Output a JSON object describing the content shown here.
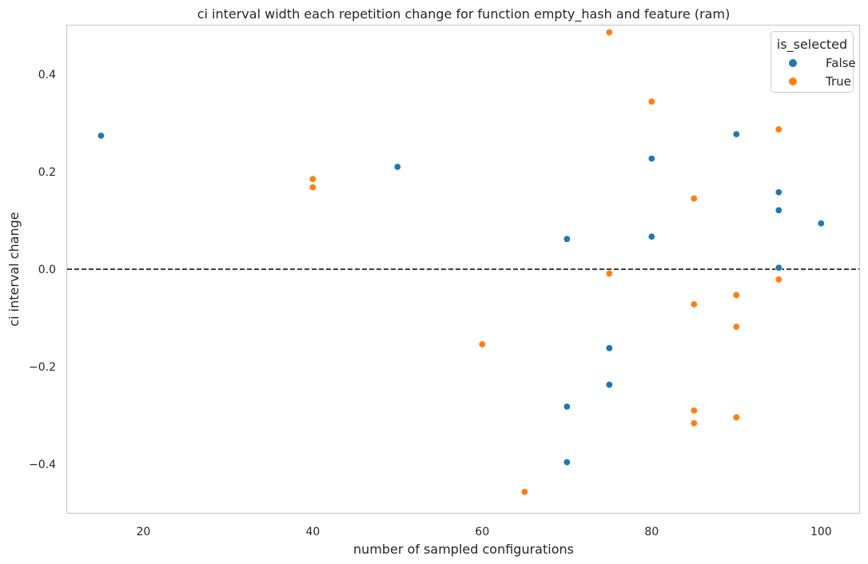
{
  "chart_data": {
    "type": "scatter",
    "title": "ci interval width each repetition change for function empty_hash and feature (ram)",
    "xlabel": "number of sampled configurations",
    "ylabel": "ci interval change",
    "xlim": [
      11,
      104.5
    ],
    "ylim": [
      -0.5,
      0.5
    ],
    "xticks": [
      20,
      40,
      60,
      80,
      100
    ],
    "xtick_labels": [
      "20",
      "40",
      "60",
      "80",
      "100"
    ],
    "yticks": [
      -0.4,
      -0.2,
      0.0,
      0.2,
      0.4
    ],
    "ytick_labels": [
      "−0.4",
      "−0.2",
      "0.0",
      "0.2",
      "0.4"
    ],
    "grid": false,
    "reference_line": {
      "y": 0.0,
      "style": "dashed",
      "color": "#000000"
    },
    "legend": {
      "title": "is_selected",
      "placement": "top-right"
    },
    "series": [
      {
        "name": "False",
        "color": "#1f77b4",
        "points": [
          [
            15,
            0.274
          ],
          [
            50,
            0.21
          ],
          [
            70,
            0.062
          ],
          [
            70,
            -0.282
          ],
          [
            70,
            -0.396
          ],
          [
            75,
            -0.162
          ],
          [
            75,
            -0.237
          ],
          [
            80,
            0.227
          ],
          [
            80,
            0.067
          ],
          [
            90,
            0.277
          ],
          [
            95,
            0.158
          ],
          [
            95,
            0.121
          ],
          [
            95,
            0.003
          ],
          [
            100,
            0.094
          ]
        ]
      },
      {
        "name": "True",
        "color": "#ff7f0e",
        "points": [
          [
            40,
            0.185
          ],
          [
            40,
            0.168
          ],
          [
            60,
            -0.154
          ],
          [
            65,
            -0.457
          ],
          [
            75,
            0.486
          ],
          [
            75,
            -0.009
          ],
          [
            80,
            0.344
          ],
          [
            85,
            0.145
          ],
          [
            85,
            -0.072
          ],
          [
            85,
            -0.29
          ],
          [
            85,
            -0.316
          ],
          [
            90,
            -0.053
          ],
          [
            90,
            -0.118
          ],
          [
            90,
            -0.304
          ],
          [
            95,
            0.287
          ],
          [
            95,
            -0.021
          ]
        ]
      }
    ]
  }
}
